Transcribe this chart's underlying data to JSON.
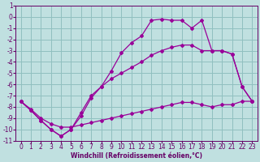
{
  "xlabel": "Windchill (Refroidissement éolien,°C)",
  "background_color": "#c0e0e0",
  "grid_color": "#90c0c0",
  "line_color": "#990099",
  "spine_color": "#660066",
  "xlim": [
    -0.5,
    23.5
  ],
  "ylim": [
    -11,
    1
  ],
  "xticks": [
    0,
    1,
    2,
    3,
    4,
    5,
    6,
    7,
    8,
    9,
    10,
    11,
    12,
    13,
    14,
    15,
    16,
    17,
    18,
    19,
    20,
    21,
    22,
    23
  ],
  "yticks": [
    1,
    0,
    -1,
    -2,
    -3,
    -4,
    -5,
    -6,
    -7,
    -8,
    -9,
    -10,
    -11
  ],
  "curve1_x": [
    0,
    1,
    2,
    3,
    4,
    5,
    6,
    7,
    8,
    9,
    10,
    11,
    12,
    13,
    14,
    15,
    16,
    17,
    18,
    19,
    20,
    21,
    22,
    23
  ],
  "curve1_y": [
    -7.5,
    -8.3,
    -9.2,
    -10.0,
    -10.6,
    -10.0,
    -8.8,
    -7.2,
    -6.2,
    -4.8,
    -3.2,
    -2.3,
    -1.7,
    -0.3,
    -0.2,
    -0.3,
    -0.3,
    -1.0,
    -0.3,
    -3.0,
    -3.0,
    -3.3,
    -6.2,
    -7.5
  ],
  "curve2_x": [
    0,
    1,
    2,
    3,
    4,
    5,
    6,
    7,
    8,
    9,
    10,
    11,
    12,
    13,
    14,
    15,
    16,
    17,
    18,
    19,
    20,
    21,
    22,
    23
  ],
  "curve2_y": [
    -7.5,
    -8.3,
    -9.2,
    -10.0,
    -10.6,
    -10.0,
    -8.5,
    -7.0,
    -6.2,
    -5.5,
    -5.0,
    -4.5,
    -4.0,
    -3.4,
    -3.0,
    -2.7,
    -2.5,
    -2.5,
    -3.0,
    -3.0,
    -3.0,
    -3.3,
    -6.2,
    -7.5
  ],
  "curve3_x": [
    0,
    1,
    2,
    3,
    4,
    5,
    6,
    7,
    8,
    9,
    10,
    11,
    12,
    13,
    14,
    15,
    16,
    17,
    18,
    19,
    20,
    21,
    22,
    23
  ],
  "curve3_y": [
    -7.5,
    -8.2,
    -9.0,
    -9.5,
    -9.8,
    -9.8,
    -9.6,
    -9.4,
    -9.2,
    -9.0,
    -8.8,
    -8.6,
    -8.4,
    -8.2,
    -8.0,
    -7.8,
    -7.6,
    -7.6,
    -7.8,
    -8.0,
    -7.8,
    -7.8,
    -7.5,
    -7.5
  ],
  "xlabel_fontsize": 5.5,
  "tick_fontsize": 5.5
}
